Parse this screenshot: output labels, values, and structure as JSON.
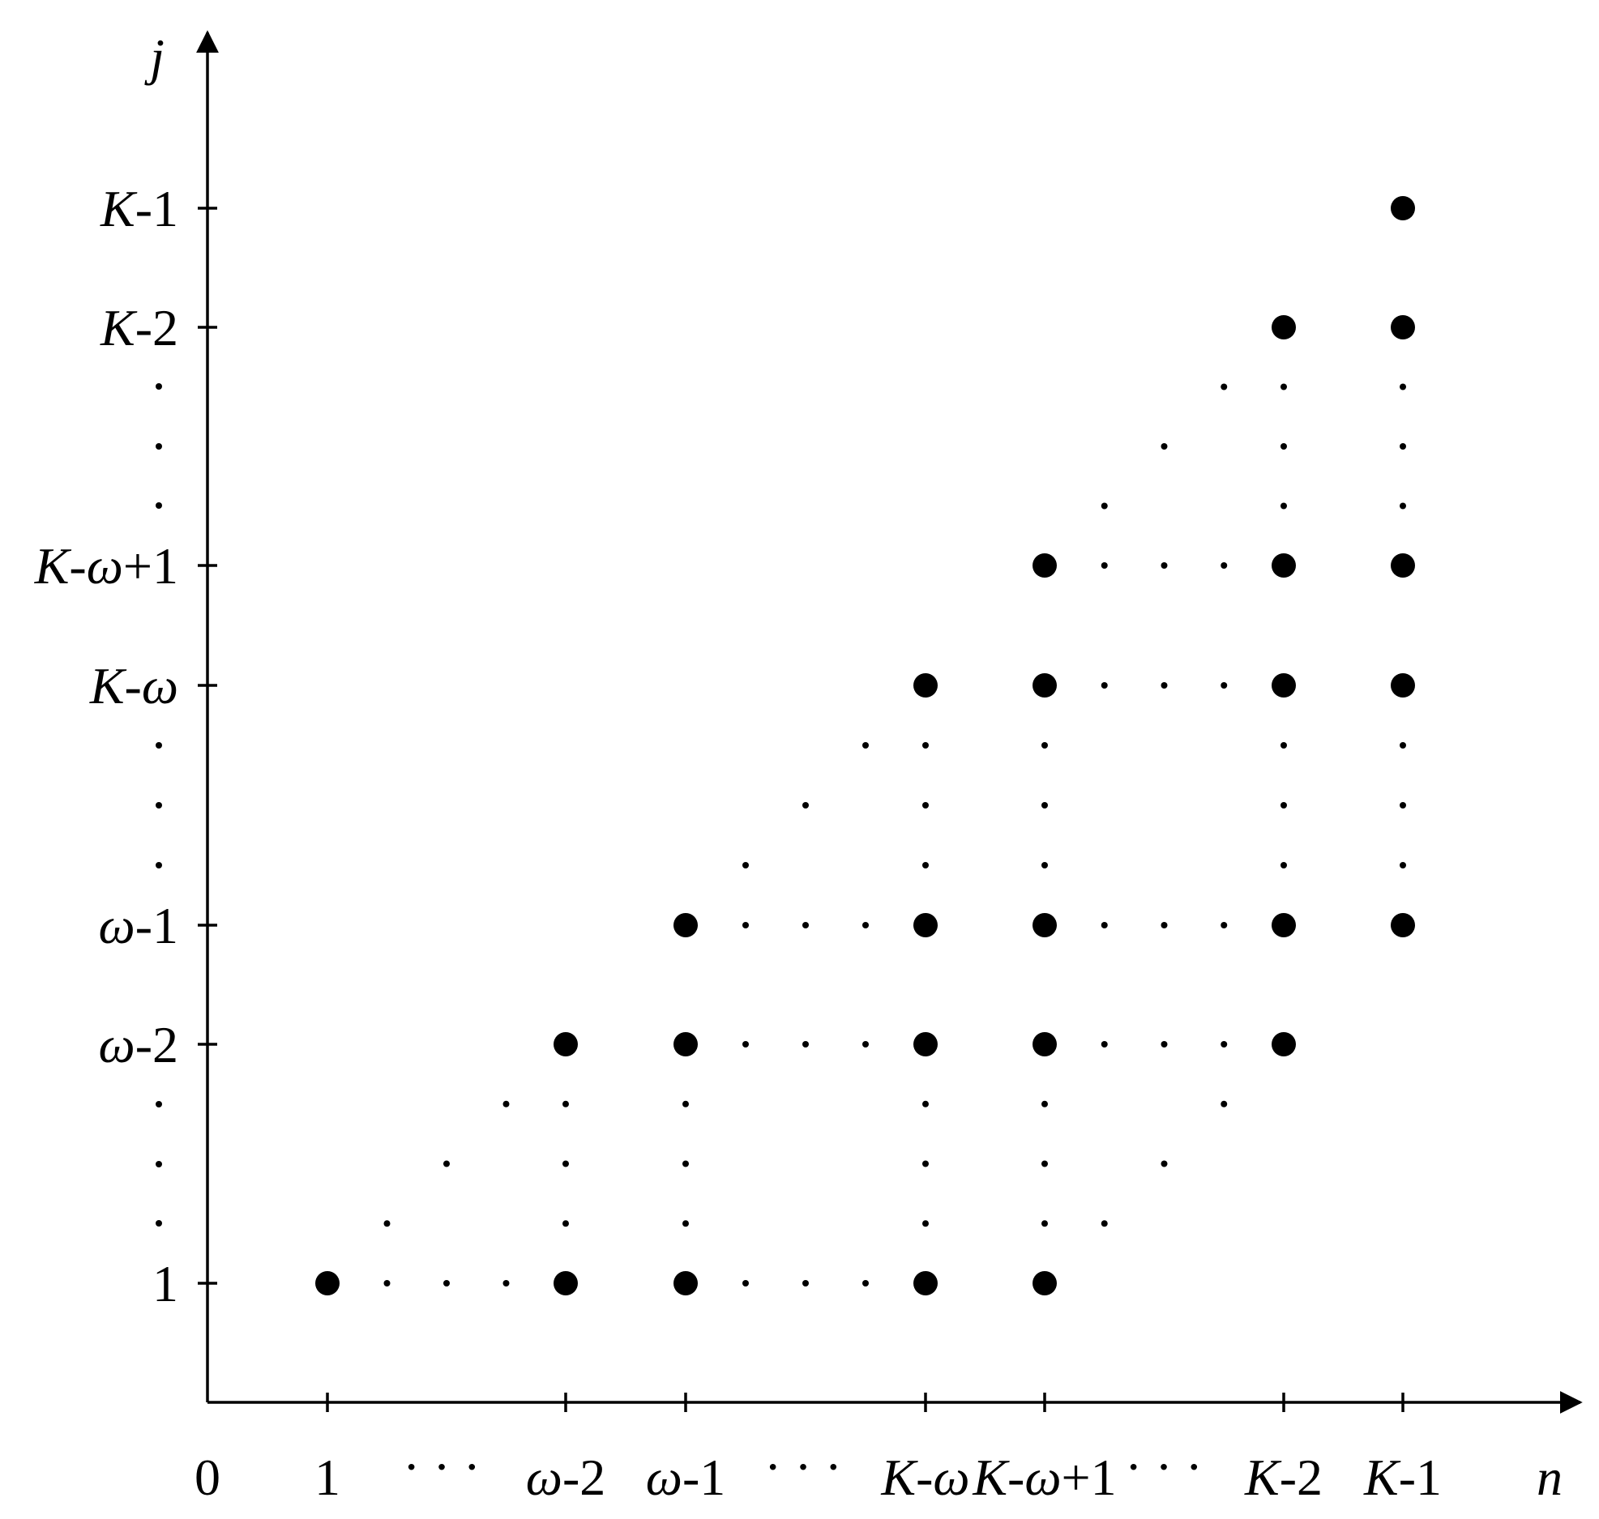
{
  "axes": {
    "x_label": "n",
    "y_label": "j",
    "origin_label": "0"
  },
  "x_ticks": [
    {
      "key": "1",
      "parts": [
        {
          "t": "1",
          "i": false
        }
      ]
    },
    {
      "key": "w-2",
      "parts": [
        {
          "t": "ω",
          "i": true
        },
        {
          "t": "-2",
          "i": false
        }
      ]
    },
    {
      "key": "w-1",
      "parts": [
        {
          "t": "ω",
          "i": true
        },
        {
          "t": "-1",
          "i": false
        }
      ]
    },
    {
      "key": "K-w",
      "parts": [
        {
          "t": "K",
          "i": true
        },
        {
          "t": "-",
          "i": false
        },
        {
          "t": "ω",
          "i": true
        }
      ]
    },
    {
      "key": "K-w+1",
      "parts": [
        {
          "t": "K",
          "i": true
        },
        {
          "t": "-",
          "i": false
        },
        {
          "t": "ω",
          "i": true
        },
        {
          "t": "+1",
          "i": false
        }
      ]
    },
    {
      "key": "K-2",
      "parts": [
        {
          "t": "K",
          "i": true
        },
        {
          "t": "-2",
          "i": false
        }
      ]
    },
    {
      "key": "K-1",
      "parts": [
        {
          "t": "K",
          "i": true
        },
        {
          "t": "-1",
          "i": false
        }
      ]
    }
  ],
  "x_ellipses": [
    "· · ·",
    "· · ·",
    "· · ·"
  ],
  "y_ticks": [
    {
      "key": "1",
      "parts": [
        {
          "t": "1",
          "i": false
        }
      ]
    },
    {
      "key": "w-2",
      "parts": [
        {
          "t": "ω",
          "i": true
        },
        {
          "t": "-2",
          "i": false
        }
      ]
    },
    {
      "key": "w-1",
      "parts": [
        {
          "t": "ω",
          "i": true
        },
        {
          "t": "-1",
          "i": false
        }
      ]
    },
    {
      "key": "K-w",
      "parts": [
        {
          "t": "K",
          "i": true
        },
        {
          "t": "-",
          "i": false
        },
        {
          "t": "ω",
          "i": true
        }
      ]
    },
    {
      "key": "K-w+1",
      "parts": [
        {
          "t": "K",
          "i": true
        },
        {
          "t": "-",
          "i": false
        },
        {
          "t": "ω",
          "i": true
        },
        {
          "t": "+1",
          "i": false
        }
      ]
    },
    {
      "key": "K-2",
      "parts": [
        {
          "t": "K",
          "i": true
        },
        {
          "t": "-2",
          "i": false
        }
      ]
    },
    {
      "key": "K-1",
      "parts": [
        {
          "t": "K",
          "i": true
        },
        {
          "t": "-1",
          "i": false
        }
      ]
    }
  ],
  "points": [
    {
      "n": "1",
      "j": "1"
    },
    {
      "n": "w-2",
      "j": "1"
    },
    {
      "n": "w-2",
      "j": "w-2"
    },
    {
      "n": "w-1",
      "j": "1"
    },
    {
      "n": "w-1",
      "j": "w-2"
    },
    {
      "n": "w-1",
      "j": "w-1"
    },
    {
      "n": "K-w",
      "j": "1"
    },
    {
      "n": "K-w",
      "j": "w-2"
    },
    {
      "n": "K-w",
      "j": "w-1"
    },
    {
      "n": "K-w",
      "j": "K-w"
    },
    {
      "n": "K-w+1",
      "j": "1"
    },
    {
      "n": "K-w+1",
      "j": "w-2"
    },
    {
      "n": "K-w+1",
      "j": "w-1"
    },
    {
      "n": "K-w+1",
      "j": "K-w"
    },
    {
      "n": "K-w+1",
      "j": "K-w+1"
    },
    {
      "n": "K-2",
      "j": "w-2"
    },
    {
      "n": "K-2",
      "j": "w-1"
    },
    {
      "n": "K-2",
      "j": "K-w"
    },
    {
      "n": "K-2",
      "j": "K-w+1"
    },
    {
      "n": "K-2",
      "j": "K-2"
    },
    {
      "n": "K-1",
      "j": "w-1"
    },
    {
      "n": "K-1",
      "j": "K-w"
    },
    {
      "n": "K-1",
      "j": "K-w+1"
    },
    {
      "n": "K-1",
      "j": "K-2"
    },
    {
      "n": "K-1",
      "j": "K-1"
    }
  ]
}
